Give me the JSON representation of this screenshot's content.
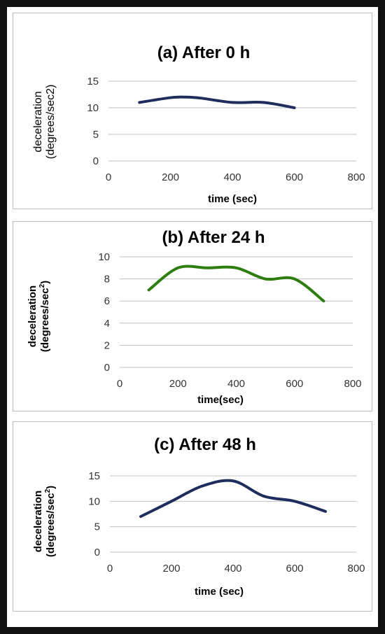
{
  "chart_data": [
    {
      "type": "line",
      "title": "(a) After 0 h",
      "xlabel": "time (sec)",
      "ylabel_line1": "deceleration",
      "ylabel_line2": "(degrees/sec2)",
      "ylabel_sup": "",
      "ylabel_close": "",
      "xlim": [
        0,
        800
      ],
      "ylim": [
        0,
        15
      ],
      "xticks": [
        "0",
        "200",
        "400",
        "600",
        "800"
      ],
      "yticks": [
        "0",
        "5",
        "10",
        "15"
      ],
      "grid": true,
      "legend": "none",
      "series": [
        {
          "color": "#1f2d5c",
          "x": [
            100,
            200,
            250,
            300,
            400,
            500,
            600
          ],
          "y": [
            11,
            11.9,
            12,
            11.8,
            11,
            11,
            10
          ]
        }
      ]
    },
    {
      "type": "line",
      "title": "(b) After 24 h",
      "xlabel": "time(sec)",
      "ylabel_line1": "deceleration",
      "ylabel_line2": "(degrees/sec",
      "ylabel_sup": "2",
      "ylabel_close": ")",
      "xlim": [
        0,
        800
      ],
      "ylim": [
        0,
        10
      ],
      "xticks": [
        "0",
        "200",
        "400",
        "600",
        "800"
      ],
      "yticks": [
        "0",
        "2",
        "4",
        "6",
        "8",
        "10"
      ],
      "grid": true,
      "legend": "none",
      "series": [
        {
          "color": "#2e7d0f",
          "x": [
            100,
            200,
            300,
            400,
            500,
            600,
            700
          ],
          "y": [
            7,
            9,
            9,
            9,
            8,
            8,
            6
          ]
        }
      ]
    },
    {
      "type": "line",
      "title": "(c) After 48 h",
      "xlabel": "time (sec)",
      "ylabel_line1": "deceleration",
      "ylabel_line2": "(degrees/sec",
      "ylabel_sup": "2",
      "ylabel_close": ")",
      "xlim": [
        0,
        800
      ],
      "ylim": [
        0,
        15
      ],
      "xticks": [
        "0",
        "200",
        "400",
        "600",
        "800"
      ],
      "yticks": [
        "0",
        "5",
        "10",
        "15"
      ],
      "grid": true,
      "legend": "none",
      "series": [
        {
          "color": "#1f2d5c",
          "x": [
            100,
            200,
            300,
            400,
            500,
            600,
            700
          ],
          "y": [
            7,
            10,
            13,
            14,
            11,
            10,
            8
          ]
        }
      ]
    }
  ]
}
